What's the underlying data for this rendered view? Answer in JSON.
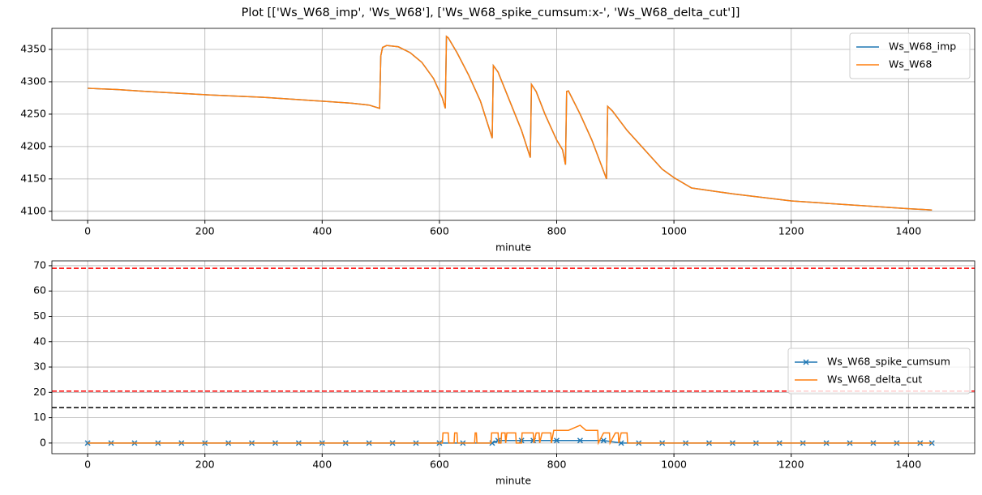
{
  "title": "Plot [['Ws_W68_imp', 'Ws_W68'], ['Ws_W68_spike_cumsum:x-', 'Ws_W68_delta_cut']]",
  "chart_data": [
    {
      "type": "line",
      "x_label": "minute",
      "x": [
        0,
        50,
        100,
        200,
        300,
        400,
        450,
        480,
        498,
        500,
        503,
        510,
        530,
        550,
        570,
        590,
        605,
        610,
        612,
        615,
        630,
        650,
        670,
        690,
        692,
        700,
        720,
        740,
        755,
        757,
        765,
        780,
        800,
        810,
        815,
        817,
        820,
        840,
        860,
        885,
        887,
        895,
        920,
        950,
        980,
        1000,
        1030,
        1100,
        1200,
        1300,
        1400,
        1440
      ],
      "series": [
        {
          "name": "Ws_W68_imp",
          "color": "#1f77b4",
          "values": [
            4290,
            4288,
            4285,
            4280,
            4276,
            4270,
            4267,
            4264,
            4259,
            4340,
            4353,
            4356,
            4354,
            4345,
            4330,
            4305,
            4275,
            4259,
            4370,
            4368,
            4345,
            4310,
            4270,
            4213,
            4325,
            4315,
            4270,
            4225,
            4183,
            4296,
            4285,
            4250,
            4210,
            4195,
            4172,
            4285,
            4286,
            4250,
            4210,
            4150,
            4262,
            4255,
            4225,
            4195,
            4165,
            4152,
            4136,
            4127,
            4116,
            4110,
            4104,
            4102
          ]
        },
        {
          "name": "Ws_W68",
          "color": "#ff7f0e",
          "values": [
            4290,
            4288,
            4285,
            4280,
            4276,
            4270,
            4267,
            4264,
            4259,
            4340,
            4353,
            4356,
            4354,
            4345,
            4330,
            4305,
            4275,
            4259,
            4370,
            4368,
            4345,
            4310,
            4270,
            4213,
            4325,
            4315,
            4270,
            4225,
            4183,
            4296,
            4285,
            4250,
            4210,
            4195,
            4172,
            4285,
            4286,
            4250,
            4210,
            4150,
            4262,
            4255,
            4225,
            4195,
            4165,
            4152,
            4136,
            4127,
            4116,
            4110,
            4104,
            4102
          ]
        }
      ],
      "xlim": [
        -61,
        1513
      ],
      "xticks": [
        0,
        200,
        400,
        600,
        800,
        1000,
        1200,
        1400
      ],
      "ylim": [
        4086,
        4382.5
      ],
      "yticks": [
        4100,
        4150,
        4200,
        4250,
        4300,
        4350
      ],
      "grid": true,
      "legend": "upper-right"
    },
    {
      "type": "line",
      "x_label": "minute",
      "series": [
        {
          "name": "Ws_W68_spike_cumsum",
          "color": "#1f77b4",
          "marker": "x",
          "x": [
            0,
            40,
            80,
            120,
            160,
            200,
            240,
            280,
            320,
            360,
            400,
            440,
            480,
            520,
            560,
            600,
            640,
            690,
            700,
            740,
            760,
            800,
            840,
            880,
            910,
            940,
            980,
            1020,
            1060,
            1100,
            1140,
            1180,
            1220,
            1260,
            1300,
            1340,
            1380,
            1420,
            1440
          ],
          "values": [
            0,
            0,
            0,
            0,
            0,
            0,
            0,
            0,
            0,
            0,
            0,
            0,
            0,
            0,
            0,
            0,
            0,
            0,
            1,
            1,
            1,
            1,
            1,
            1,
            0,
            0,
            0,
            0,
            0,
            0,
            0,
            0,
            0,
            0,
            0,
            0,
            0,
            0,
            0
          ]
        },
        {
          "name": "Ws_W68_delta_cut",
          "color": "#ff7f0e",
          "x": [
            0,
            605,
            606,
            615,
            616,
            625,
            626,
            630,
            631,
            660,
            661,
            663,
            664,
            688,
            689,
            700,
            701,
            705,
            706,
            712,
            713,
            715,
            730,
            731,
            740,
            741,
            760,
            761,
            765,
            770,
            771,
            775,
            790,
            791,
            795,
            820,
            830,
            840,
            850,
            870,
            871,
            880,
            890,
            891,
            900,
            905,
            906,
            910,
            920,
            921,
            1440
          ],
          "values": [
            0,
            0,
            4,
            4,
            0,
            0,
            4,
            4,
            0,
            0,
            4,
            4,
            0,
            0,
            4,
            4,
            0,
            0,
            4,
            4,
            0,
            4,
            4,
            0,
            0,
            4,
            4,
            0,
            4,
            4,
            0,
            4,
            4,
            0,
            5,
            5,
            6,
            7,
            5,
            5,
            0,
            4,
            4,
            0,
            4,
            4,
            0,
            4,
            4,
            0,
            0
          ]
        }
      ],
      "hlines": [
        {
          "value": 69,
          "color": "#ff0000"
        },
        {
          "value": 20.5,
          "color": "#ff0000"
        },
        {
          "value": 14,
          "color": "#000000"
        }
      ],
      "xlim": [
        -61,
        1513
      ],
      "xticks": [
        0,
        200,
        400,
        600,
        800,
        1000,
        1200,
        1400
      ],
      "ylim": [
        -4.2,
        71.9
      ],
      "yticks": [
        0,
        10,
        20,
        30,
        40,
        50,
        60,
        70
      ],
      "grid": true,
      "legend": "center-right"
    }
  ]
}
